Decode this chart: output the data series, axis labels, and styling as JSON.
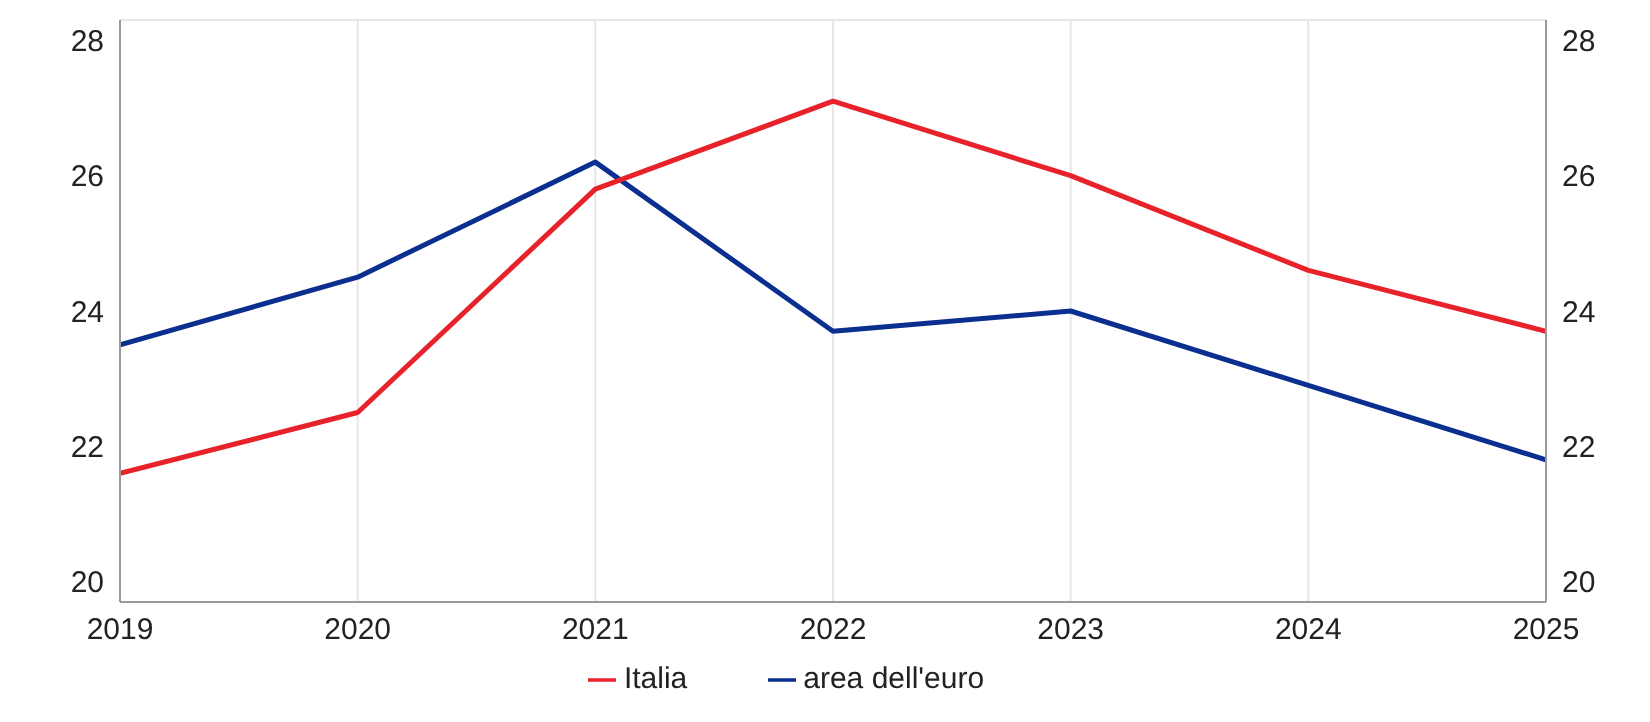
{
  "chart_data": {
    "type": "line",
    "x": [
      2019,
      2020,
      2021,
      2022,
      2023,
      2024,
      2025
    ],
    "series": [
      {
        "name": "area dell'euro",
        "color": "#0b2f8f",
        "values": [
          23.5,
          24.5,
          26.2,
          23.7,
          24.0,
          22.9,
          21.8
        ]
      },
      {
        "name": "Italia",
        "color": "#e8222a",
        "values": [
          21.6,
          22.5,
          25.8,
          27.1,
          26.0,
          24.6,
          23.7
        ]
      }
    ],
    "xlim": [
      2019,
      2025
    ],
    "xticks": [
      2019,
      2020,
      2021,
      2022,
      2023,
      2024,
      2025
    ],
    "ylim": [
      19.7,
      28.3
    ],
    "yticks": [
      20,
      22,
      24,
      26,
      28
    ],
    "y2lim": [
      19.7,
      28.3
    ],
    "y2ticks": [
      20,
      22,
      24,
      26,
      28
    ],
    "grid": true,
    "legend": "bottom",
    "marker": "none",
    "line_style": "solid"
  }
}
